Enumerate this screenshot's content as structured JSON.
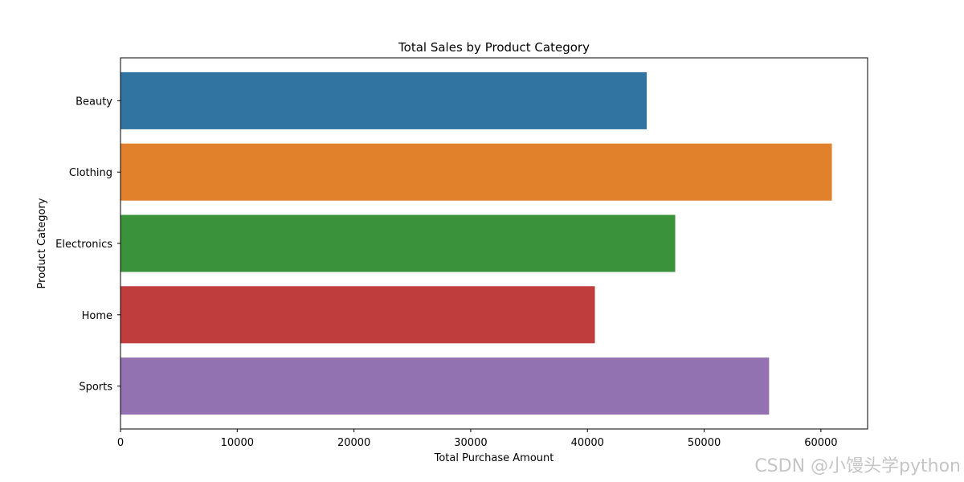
{
  "chart_data": {
    "type": "bar",
    "orientation": "horizontal",
    "title": "Total Sales by Product Category",
    "xlabel": "Total Purchase Amount",
    "ylabel": "Product Category",
    "categories": [
      "Beauty",
      "Clothing",
      "Electronics",
      "Home",
      "Sports"
    ],
    "values": [
      45080,
      60940,
      47520,
      40640,
      55560
    ],
    "colors": [
      "#3274a1",
      "#e1812c",
      "#3a923a",
      "#c03d3e",
      "#9372b2"
    ],
    "xlim": [
      0,
      64000
    ],
    "xticks": [
      0,
      10000,
      20000,
      30000,
      40000,
      50000,
      60000
    ],
    "grid": false,
    "legend": "none"
  },
  "watermark": "CSDN @小馒头学python"
}
